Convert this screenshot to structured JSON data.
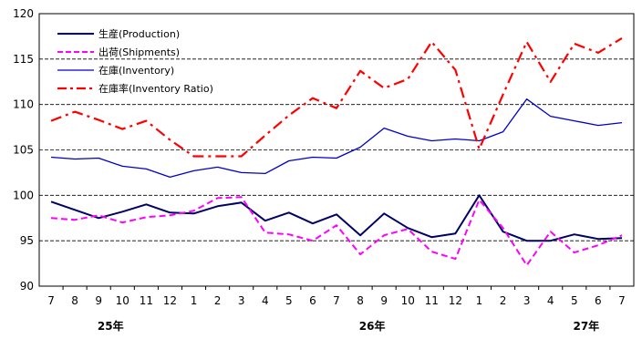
{
  "chart_data": {
    "type": "line",
    "title": "",
    "xlabel": "",
    "ylabel": "",
    "ylim": [
      90,
      120
    ],
    "yticks": [
      90,
      95,
      100,
      105,
      110,
      115,
      120
    ],
    "categories": [
      "7",
      "8",
      "9",
      "10",
      "11",
      "12",
      "1",
      "2",
      "3",
      "4",
      "5",
      "6",
      "7",
      "8",
      "9",
      "10",
      "11",
      "12",
      "1",
      "2",
      "3",
      "4",
      "5",
      "6",
      "7"
    ],
    "year_labels": [
      {
        "label": "25年",
        "category_index": 2.5
      },
      {
        "label": "26年",
        "category_index": 13.5
      },
      {
        "label": "27年",
        "category_index": 22.5
      }
    ],
    "grid": "horizontal dashed",
    "legend_position": "top-left",
    "series": [
      {
        "name": "生産(Production)",
        "color": "#000066",
        "style": "solid",
        "width": 2,
        "values": [
          99.3,
          98.4,
          97.5,
          98.2,
          99.0,
          98.1,
          98.0,
          98.8,
          99.2,
          97.2,
          98.1,
          96.9,
          97.9,
          95.6,
          98.0,
          96.4,
          95.4,
          95.8,
          100.0,
          96.0,
          95.0,
          95.0,
          95.7,
          95.2,
          95.3
        ]
      },
      {
        "name": "出荷(Shipments)",
        "color": "#ff00ff",
        "style": "dashed",
        "width": 2,
        "values": [
          97.5,
          97.3,
          97.8,
          97.0,
          97.6,
          97.8,
          98.3,
          99.7,
          99.8,
          95.9,
          95.7,
          95.0,
          96.7,
          93.5,
          95.6,
          96.3,
          93.8,
          93.0,
          99.5,
          96.4,
          92.3,
          96.0,
          93.7,
          94.5,
          95.6
        ]
      },
      {
        "name": "在庫(Inventory)",
        "color": "#0000cc",
        "style": "solid",
        "width": 1.3,
        "values": [
          104.2,
          104.0,
          104.1,
          103.2,
          102.9,
          102.0,
          102.7,
          103.1,
          102.5,
          102.4,
          103.8,
          104.2,
          104.1,
          105.3,
          107.4,
          106.5,
          106.0,
          106.2,
          106.0,
          107.0,
          110.6,
          108.7,
          108.2,
          107.7,
          108.0
        ]
      },
      {
        "name": "在庫率(Inventory Ratio)",
        "color": "#ff0000",
        "style": "dashdot",
        "width": 2.2,
        "values": [
          108.2,
          109.2,
          108.3,
          107.3,
          108.2,
          106.1,
          104.3,
          104.3,
          104.3,
          106.6,
          108.8,
          110.7,
          109.6,
          113.7,
          111.8,
          112.8,
          116.9,
          113.8,
          105.1,
          111.1,
          116.9,
          112.5,
          116.7,
          115.7,
          117.3
        ]
      }
    ]
  }
}
